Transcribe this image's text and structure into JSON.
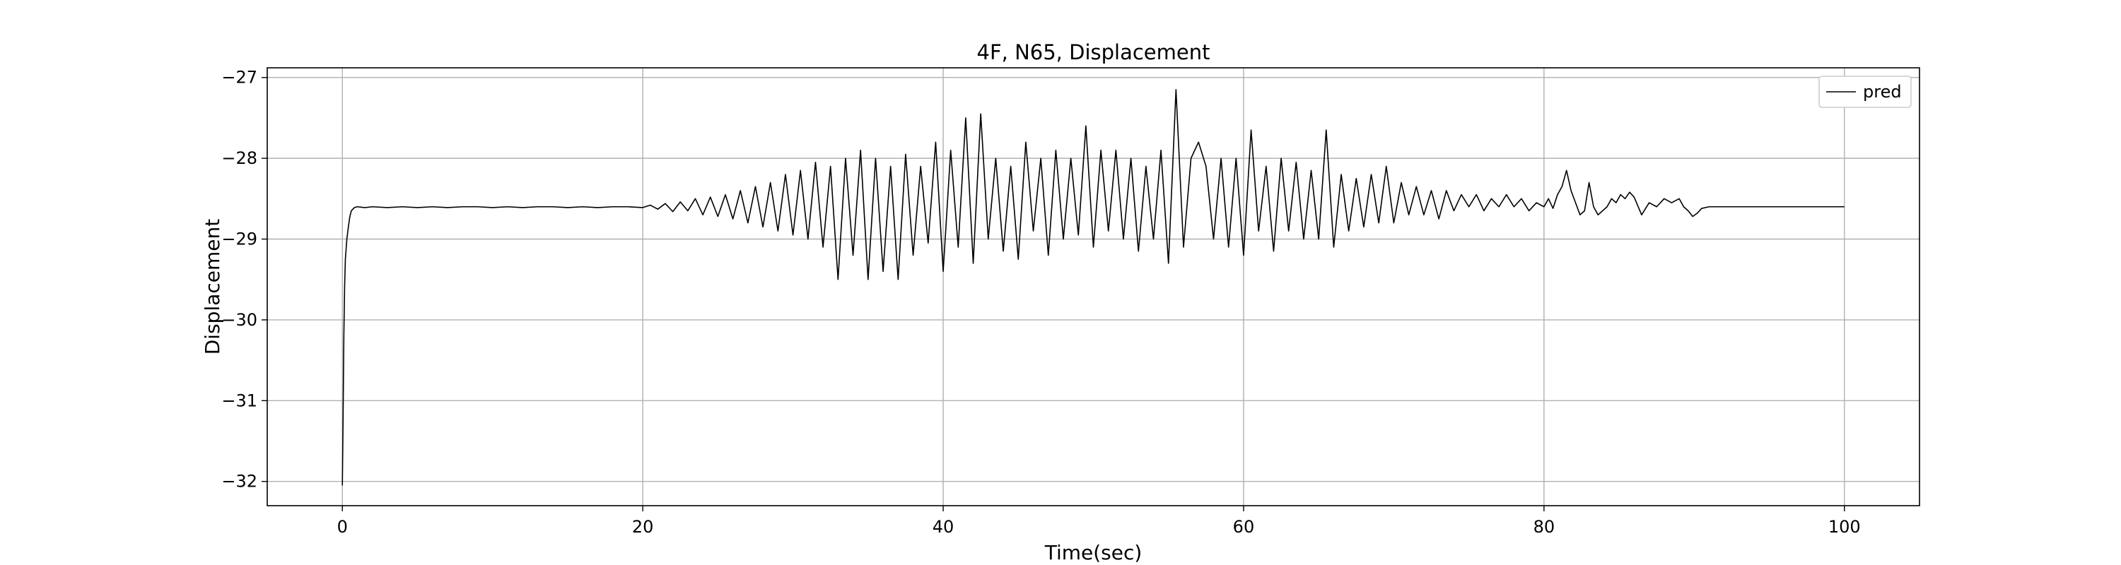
{
  "chart_data": {
    "type": "line",
    "title": "4F, N65, Displacement",
    "xlabel": "Time(sec)",
    "ylabel": "Displacement",
    "xlim": [
      -5,
      105
    ],
    "ylim": [
      -32.3,
      -26.88
    ],
    "xticks": [
      0,
      20,
      40,
      60,
      80,
      100
    ],
    "yticks": [
      -32,
      -31,
      -30,
      -29,
      -28,
      -27
    ],
    "xtick_labels": [
      "0",
      "20",
      "40",
      "60",
      "80",
      "100"
    ],
    "ytick_labels": [
      "−32",
      "−31",
      "−30",
      "−29",
      "−28",
      "−27"
    ],
    "grid": true,
    "legend_position": "top-right",
    "series": [
      {
        "name": "pred",
        "color": "#000000",
        "x": [
          0,
          0.05,
          0.1,
          0.15,
          0.2,
          0.3,
          0.4,
          0.5,
          0.6,
          0.8,
          1.0,
          1.5,
          2,
          3,
          4,
          5,
          6,
          7,
          8,
          9,
          10,
          11,
          12,
          13,
          14,
          15,
          16,
          17,
          18,
          19,
          20,
          20.5,
          21,
          21.5,
          22,
          22.5,
          23,
          23.5,
          24,
          24.5,
          25,
          25.5,
          26,
          26.5,
          27,
          27.5,
          28,
          28.5,
          29,
          29.5,
          30,
          30.5,
          31,
          31.5,
          32,
          32.5,
          33,
          33.5,
          34,
          34.5,
          35,
          35.5,
          36,
          36.5,
          37,
          37.5,
          38,
          38.5,
          39,
          39.5,
          40,
          40.5,
          41,
          41.5,
          42,
          42.5,
          43,
          43.5,
          44,
          44.5,
          45,
          45.5,
          46,
          46.5,
          47,
          47.5,
          48,
          48.5,
          49,
          49.5,
          50,
          50.5,
          51,
          51.5,
          52,
          52.5,
          53,
          53.5,
          54,
          54.5,
          55,
          55.5,
          56,
          56.5,
          57,
          57.5,
          58,
          58.5,
          59,
          59.5,
          60,
          60.5,
          61,
          61.5,
          62,
          62.5,
          63,
          63.5,
          64,
          64.5,
          65,
          65.5,
          66,
          66.5,
          67,
          67.5,
          68,
          68.5,
          69,
          69.5,
          70,
          70.5,
          71,
          71.5,
          72,
          72.5,
          73,
          73.5,
          74,
          74.5,
          75,
          75.5,
          76,
          76.5,
          77,
          77.5,
          78,
          78.5,
          79,
          79.5,
          80,
          80.3,
          80.6,
          80.9,
          81.2,
          81.5,
          81.8,
          82.1,
          82.4,
          82.7,
          83,
          83.3,
          83.6,
          83.9,
          84.2,
          84.5,
          84.8,
          85.1,
          85.4,
          85.7,
          86,
          86.5,
          87,
          87.5,
          88,
          88.5,
          89,
          89.3,
          89.6,
          89.9,
          90.2,
          90.5,
          91,
          92,
          94,
          96,
          98,
          100
        ],
        "values": [
          -32.05,
          -31.2,
          -30.2,
          -29.6,
          -29.25,
          -29.0,
          -28.85,
          -28.72,
          -28.65,
          -28.61,
          -28.6,
          -28.61,
          -28.6,
          -28.61,
          -28.6,
          -28.61,
          -28.6,
          -28.61,
          -28.6,
          -28.6,
          -28.61,
          -28.6,
          -28.61,
          -28.6,
          -28.6,
          -28.61,
          -28.6,
          -28.61,
          -28.6,
          -28.6,
          -28.61,
          -28.58,
          -28.63,
          -28.56,
          -28.66,
          -28.54,
          -28.65,
          -28.5,
          -28.7,
          -28.48,
          -28.72,
          -28.45,
          -28.75,
          -28.4,
          -28.8,
          -28.35,
          -28.85,
          -28.3,
          -28.9,
          -28.2,
          -28.95,
          -28.15,
          -29.0,
          -28.05,
          -29.1,
          -28.1,
          -29.5,
          -28.0,
          -29.2,
          -27.9,
          -29.5,
          -28.0,
          -29.4,
          -28.1,
          -29.5,
          -27.95,
          -29.2,
          -28.1,
          -29.05,
          -27.8,
          -29.4,
          -27.9,
          -29.1,
          -27.5,
          -29.3,
          -27.45,
          -29.0,
          -28.0,
          -29.15,
          -28.1,
          -29.25,
          -27.8,
          -28.9,
          -28.0,
          -29.2,
          -27.9,
          -29.0,
          -28.0,
          -28.95,
          -27.6,
          -29.1,
          -27.9,
          -28.9,
          -27.9,
          -29.0,
          -28.0,
          -29.15,
          -28.1,
          -29.0,
          -27.9,
          -29.3,
          -27.15,
          -29.1,
          -28.0,
          -27.8,
          -28.1,
          -29.0,
          -28.0,
          -29.1,
          -28.0,
          -29.2,
          -27.65,
          -28.9,
          -28.1,
          -29.15,
          -28.0,
          -28.9,
          -28.05,
          -29.0,
          -28.15,
          -29.0,
          -27.65,
          -29.1,
          -28.2,
          -28.9,
          -28.25,
          -28.85,
          -28.2,
          -28.8,
          -28.1,
          -28.8,
          -28.3,
          -28.7,
          -28.35,
          -28.7,
          -28.4,
          -28.75,
          -28.4,
          -28.65,
          -28.45,
          -28.6,
          -28.45,
          -28.65,
          -28.5,
          -28.6,
          -28.45,
          -28.6,
          -28.5,
          -28.65,
          -28.55,
          -28.6,
          -28.5,
          -28.62,
          -28.45,
          -28.35,
          -28.15,
          -28.4,
          -28.55,
          -28.7,
          -28.65,
          -28.3,
          -28.6,
          -28.7,
          -28.65,
          -28.6,
          -28.5,
          -28.55,
          -28.45,
          -28.5,
          -28.42,
          -28.48,
          -28.7,
          -28.55,
          -28.6,
          -28.5,
          -28.55,
          -28.5,
          -28.6,
          -28.65,
          -28.72,
          -28.68,
          -28.62,
          -28.6,
          -28.6,
          -28.6,
          -28.6,
          -28.6,
          -28.6
        ]
      }
    ]
  }
}
